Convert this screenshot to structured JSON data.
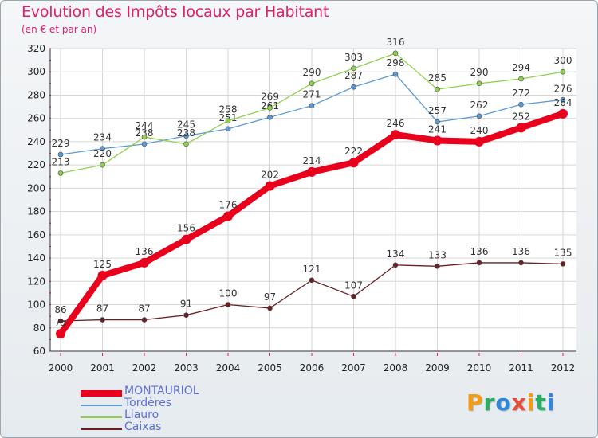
{
  "header": {
    "title": "Evolution des Impôts locaux par Habitant",
    "subtitle": "(en € et par an)"
  },
  "logo": {
    "text": "Proxiti",
    "letters": [
      {
        "char": "P",
        "color": "#f39c12"
      },
      {
        "char": "r",
        "color": "#27ae60"
      },
      {
        "char": "o",
        "color": "#2e86de"
      },
      {
        "char": "x",
        "color": "#e74c3c"
      },
      {
        "char": "i",
        "color": "#f39c12"
      },
      {
        "char": "t",
        "color": "#27ae60"
      },
      {
        "char": "i",
        "color": "#2e86de"
      }
    ]
  },
  "chart_data": {
    "type": "line",
    "title": "Evolution des Impôts locaux par Habitant",
    "subtitle": "(en € et par an)",
    "xlabel": "",
    "ylabel": "",
    "x": [
      "2000",
      "2001",
      "2002",
      "2003",
      "2004",
      "2005",
      "2006",
      "2007",
      "2008",
      "2009",
      "2010",
      "2011",
      "2012"
    ],
    "ylim": [
      60,
      320
    ],
    "yticks": [
      60,
      80,
      100,
      120,
      140,
      160,
      180,
      200,
      220,
      240,
      260,
      280,
      300,
      320
    ],
    "grid": true,
    "legend_position": "bottom-left",
    "series": [
      {
        "name": "Caixas",
        "color": "#6b1f24",
        "values": [
          86,
          87,
          87,
          91,
          100,
          97,
          121,
          107,
          134,
          133,
          136,
          136,
          135
        ]
      },
      {
        "name": "Tordères",
        "color": "#5b9bd5",
        "values": [
          229,
          234,
          238,
          245,
          251,
          261,
          271,
          287,
          298,
          257,
          262,
          272,
          276
        ]
      },
      {
        "name": "Llauro",
        "color": "#8fd14f",
        "values": [
          213,
          220,
          244,
          238,
          258,
          269,
          290,
          303,
          316,
          285,
          290,
          294,
          300
        ]
      },
      {
        "name": "MONTAURIOL",
        "color": "#e8001c",
        "values": [
          75,
          125,
          136,
          156,
          176,
          202,
          214,
          222,
          246,
          241,
          240,
          252,
          264
        ]
      }
    ],
    "legend_order": [
      "MONTAURIOL",
      "Tordères",
      "Llauro",
      "Caixas"
    ]
  }
}
